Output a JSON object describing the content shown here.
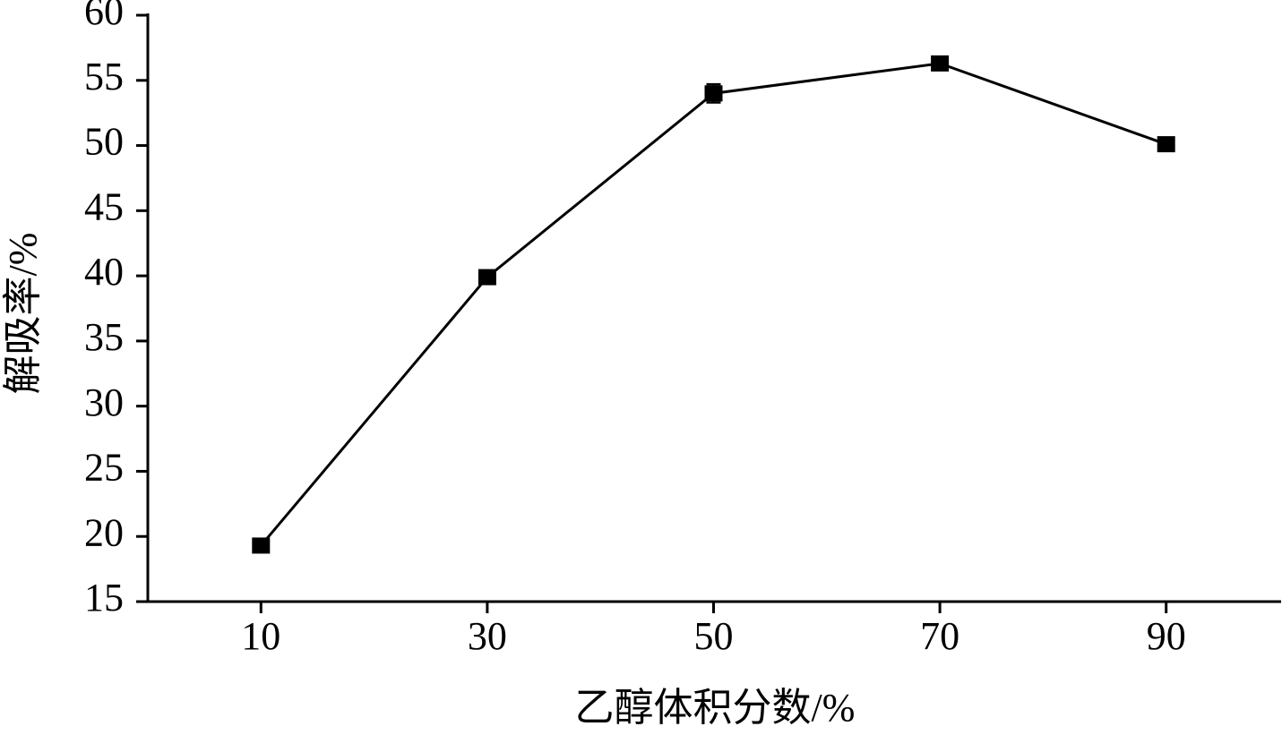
{
  "chart_data": {
    "type": "line",
    "x_label": "乙醇体积分数/%",
    "y_label": "解吸率/%",
    "x": [
      10,
      30,
      50,
      70,
      90
    ],
    "values": [
      19.3,
      39.9,
      54.0,
      56.3,
      50.1
    ],
    "errors": [
      0.2,
      0.3,
      0.7,
      0.4,
      0.2
    ],
    "color": "#000000",
    "xlim": [
      0,
      100
    ],
    "xticks": [
      10,
      30,
      50,
      70,
      90
    ],
    "ylim": [
      15,
      60
    ],
    "yticks": [
      15,
      20,
      25,
      30,
      35,
      40,
      45,
      50,
      55,
      60
    ],
    "grid": false
  }
}
